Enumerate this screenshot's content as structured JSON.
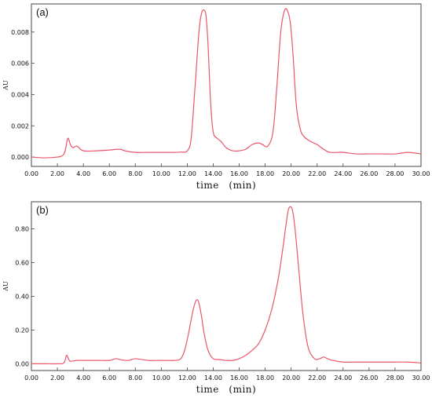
{
  "chart_data": [
    {
      "type": "line",
      "panel_label": "(a)",
      "xlabel": "time　(min)",
      "ylabel": "AU",
      "xlim": [
        0,
        30
      ],
      "ylim": [
        -0.0006,
        0.0098
      ],
      "x_ticks": [
        "0.00",
        "2.00",
        "4.00",
        "6.00",
        "8.00",
        "10.00",
        "12.00",
        "14.00",
        "16.00",
        "18.00",
        "20.00",
        "22.00",
        "24.00",
        "26.00",
        "28.00",
        "30.00"
      ],
      "y_ticks": [
        "0.000",
        "0.002",
        "0.004",
        "0.006",
        "0.008"
      ],
      "y_tick_values": [
        0,
        0.002,
        0.004,
        0.006,
        0.008
      ],
      "grid": false,
      "line_color": "#e8576a",
      "series": [
        {
          "x": [
            0,
            1,
            2,
            2.4,
            2.6,
            2.8,
            3.0,
            3.2,
            3.5,
            4,
            5,
            6,
            6.8,
            7.2,
            8,
            9,
            10,
            11,
            11.5,
            12,
            12.3,
            12.6,
            12.9,
            13.1,
            13.3,
            13.45,
            13.6,
            13.8,
            14.0,
            14.3,
            14.6,
            15.0,
            15.5,
            16,
            16.5,
            17,
            17.5,
            17.8,
            18.2,
            18.6,
            18.9,
            19.2,
            19.5,
            19.75,
            19.95,
            20.15,
            20.4,
            20.7,
            21.0,
            21.5,
            22.0,
            22.5,
            23,
            24,
            25,
            26,
            27,
            28,
            29,
            30
          ],
          "values": [
            0.0,
            -5e-05,
            0.0,
            0.0001,
            0.0004,
            0.0012,
            0.0008,
            0.0006,
            0.0007,
            0.0004,
            0.0004,
            0.00045,
            0.0005,
            0.0004,
            0.0003,
            0.0003,
            0.0003,
            0.0003,
            0.00032,
            0.0004,
            0.0012,
            0.0045,
            0.008,
            0.0092,
            0.0094,
            0.009,
            0.0072,
            0.0035,
            0.0016,
            0.0012,
            0.001,
            0.0006,
            0.0004,
            0.0004,
            0.0005,
            0.0008,
            0.0009,
            0.0008,
            0.0007,
            0.0016,
            0.0045,
            0.008,
            0.0094,
            0.0093,
            0.0085,
            0.0065,
            0.0033,
            0.0018,
            0.0013,
            0.001,
            0.0008,
            0.0005,
            0.0003,
            0.0003,
            0.0002,
            0.0002,
            0.0002,
            0.0002,
            0.0003,
            0.0002
          ]
        }
      ]
    },
    {
      "type": "line",
      "panel_label": "(b)",
      "xlabel": "time　(min)",
      "ylabel": "AU",
      "xlim": [
        0,
        30
      ],
      "ylim": [
        -0.04,
        0.96
      ],
      "x_ticks": [
        "0.00",
        "2.00",
        "4.00",
        "6.00",
        "8.00",
        "10.00",
        "12.00",
        "14.00",
        "16.00",
        "18.00",
        "20.00",
        "22.00",
        "24.00",
        "26.00",
        "28.00",
        "30.00"
      ],
      "y_ticks": [
        "0.00",
        "0.20",
        "0.40",
        "0.60",
        "0.80"
      ],
      "y_tick_values": [
        0,
        0.2,
        0.4,
        0.6,
        0.8
      ],
      "grid": false,
      "line_color": "#e8576a",
      "series": [
        {
          "x": [
            0,
            1,
            2,
            2.5,
            2.7,
            2.85,
            3.0,
            3.5,
            4,
            5,
            6,
            6.5,
            7,
            7.5,
            8,
            9,
            10,
            11,
            11.5,
            11.8,
            12.1,
            12.4,
            12.6,
            12.75,
            12.9,
            13.1,
            13.3,
            13.6,
            14,
            14.5,
            15,
            15.5,
            16,
            16.5,
            17,
            17.5,
            18,
            18.5,
            19,
            19.3,
            19.6,
            19.75,
            19.9,
            20.1,
            20.3,
            20.6,
            20.9,
            21.3,
            21.8,
            22.2,
            22.5,
            22.8,
            23.2,
            24,
            25,
            26,
            27,
            28,
            29,
            30
          ],
          "values": [
            0.0,
            0.0,
            0.0,
            0.005,
            0.05,
            0.03,
            0.015,
            0.02,
            0.02,
            0.02,
            0.02,
            0.03,
            0.022,
            0.02,
            0.03,
            0.02,
            0.02,
            0.02,
            0.03,
            0.08,
            0.18,
            0.3,
            0.36,
            0.38,
            0.36,
            0.28,
            0.18,
            0.08,
            0.03,
            0.025,
            0.02,
            0.02,
            0.03,
            0.05,
            0.08,
            0.12,
            0.2,
            0.32,
            0.5,
            0.65,
            0.82,
            0.9,
            0.93,
            0.91,
            0.8,
            0.55,
            0.3,
            0.1,
            0.03,
            0.03,
            0.04,
            0.03,
            0.02,
            0.01,
            0.01,
            0.01,
            0.01,
            0.01,
            0.01,
            0.005
          ]
        }
      ]
    }
  ]
}
